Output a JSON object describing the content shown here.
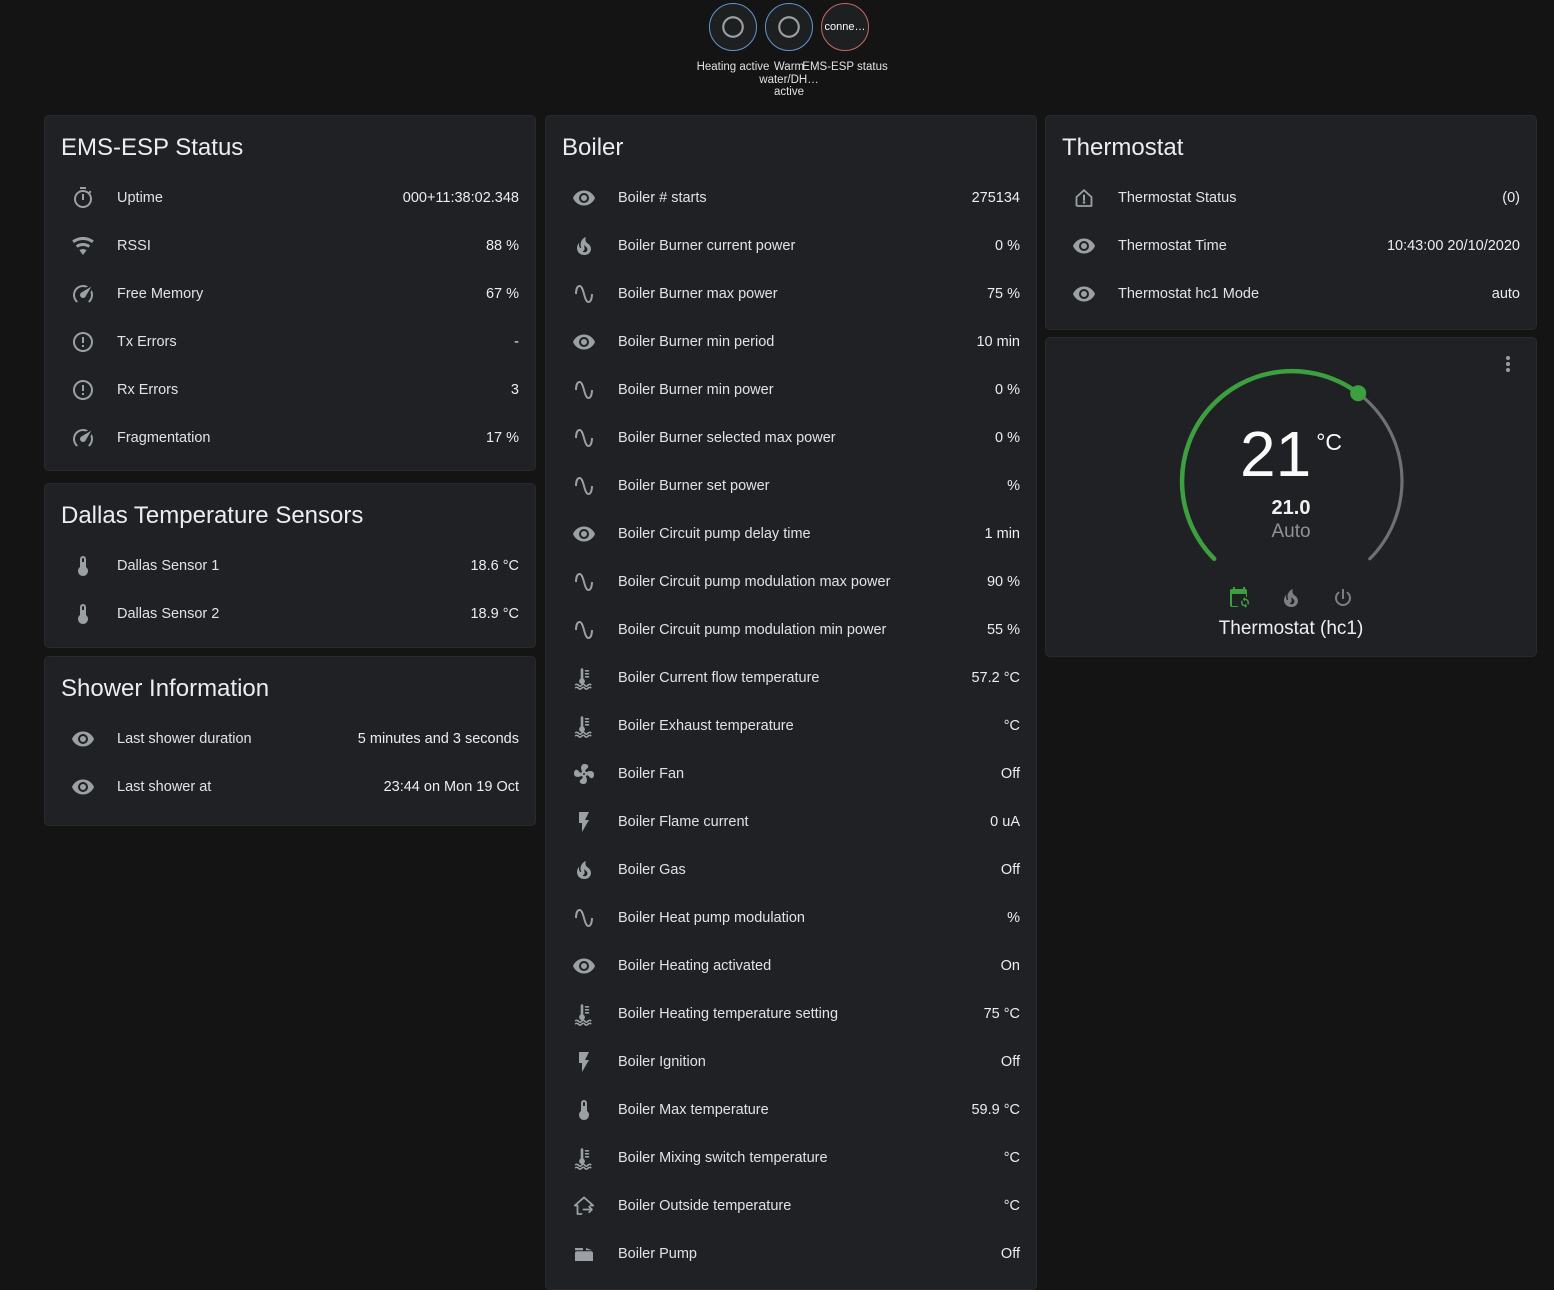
{
  "colors": {
    "accent_green": "#3da03f",
    "badge_blue": "#6295d2",
    "badge_red": "#c86868",
    "arc_gray": "#6e7072"
  },
  "badges": {
    "items": [
      {
        "icon": "radiobox-blank-icon",
        "label": "Heating active",
        "state_text": ""
      },
      {
        "icon": "radiobox-blank-icon",
        "label": "Warm water/DH… active",
        "state_text": ""
      },
      {
        "icon": "",
        "label": "EMS-ESP status",
        "state_text": "conne…"
      }
    ]
  },
  "cards": {
    "ems_status": {
      "title": "EMS-ESP Status",
      "rows": [
        {
          "icon": "timer-icon",
          "label": "Uptime",
          "value": "000+11:38:02.348"
        },
        {
          "icon": "wifi-icon",
          "label": "RSSI",
          "value": "88 %"
        },
        {
          "icon": "gauge-icon",
          "label": "Free Memory",
          "value": "67 %"
        },
        {
          "icon": "alert-circle-icon",
          "label": "Tx Errors",
          "value": "-"
        },
        {
          "icon": "alert-circle-icon",
          "label": "Rx Errors",
          "value": "3"
        },
        {
          "icon": "gauge-icon",
          "label": "Fragmentation",
          "value": "17 %"
        }
      ]
    },
    "dallas": {
      "title": "Dallas Temperature Sensors",
      "rows": [
        {
          "icon": "thermometer-icon",
          "label": "Dallas Sensor 1",
          "value": "18.6 °C"
        },
        {
          "icon": "thermometer-icon",
          "label": "Dallas Sensor 2",
          "value": "18.9 °C"
        }
      ]
    },
    "shower": {
      "title": "Shower Information",
      "rows": [
        {
          "icon": "eye-icon",
          "label": "Last shower duration",
          "value": "5 minutes and 3 seconds"
        },
        {
          "icon": "eye-icon",
          "label": "Last shower at",
          "value": "23:44 on Mon 19 Oct"
        }
      ]
    },
    "boiler": {
      "title": "Boiler",
      "rows": [
        {
          "icon": "eye-icon",
          "label": "Boiler # starts",
          "value": "275134"
        },
        {
          "icon": "fire-icon",
          "label": "Boiler Burner current power",
          "value": "0 %"
        },
        {
          "icon": "sine-wave-icon",
          "label": "Boiler Burner max power",
          "value": "75 %"
        },
        {
          "icon": "eye-icon",
          "label": "Boiler Burner min period",
          "value": "10 min"
        },
        {
          "icon": "sine-wave-icon",
          "label": "Boiler Burner min power",
          "value": "0 %"
        },
        {
          "icon": "sine-wave-icon",
          "label": "Boiler Burner selected max power",
          "value": "0 %"
        },
        {
          "icon": "sine-wave-icon",
          "label": "Boiler Burner set power",
          "value": "%"
        },
        {
          "icon": "eye-icon",
          "label": "Boiler Circuit pump delay time",
          "value": "1 min"
        },
        {
          "icon": "sine-wave-icon",
          "label": "Boiler Circuit pump modulation max power",
          "value": "90 %"
        },
        {
          "icon": "sine-wave-icon",
          "label": "Boiler Circuit pump modulation min power",
          "value": "55 %"
        },
        {
          "icon": "coolant-thermometer-icon",
          "label": "Boiler Current flow temperature",
          "value": "57.2 °C"
        },
        {
          "icon": "coolant-thermometer-icon",
          "label": "Boiler Exhaust temperature",
          "value": "°C"
        },
        {
          "icon": "fan-icon",
          "label": "Boiler Fan",
          "value": "Off"
        },
        {
          "icon": "flash-icon",
          "label": "Boiler Flame current",
          "value": "0 uA"
        },
        {
          "icon": "fire-icon",
          "label": "Boiler Gas",
          "value": "Off"
        },
        {
          "icon": "sine-wave-icon",
          "label": "Boiler Heat pump modulation",
          "value": "%"
        },
        {
          "icon": "eye-icon",
          "label": "Boiler Heating activated",
          "value": "On"
        },
        {
          "icon": "coolant-thermometer-icon",
          "label": "Boiler Heating temperature setting",
          "value": "75 °C"
        },
        {
          "icon": "flash-icon",
          "label": "Boiler Ignition",
          "value": "Off"
        },
        {
          "icon": "thermometer-icon",
          "label": "Boiler Max temperature",
          "value": "59.9 °C"
        },
        {
          "icon": "coolant-thermometer-icon",
          "label": "Boiler Mixing switch temperature",
          "value": "°C"
        },
        {
          "icon": "home-export-icon",
          "label": "Boiler Outside temperature",
          "value": "°C"
        },
        {
          "icon": "pump-icon",
          "label": "Boiler Pump",
          "value": "Off"
        }
      ]
    },
    "thermostat": {
      "title": "Thermostat",
      "rows": [
        {
          "icon": "home-alert-icon",
          "label": "Thermostat Status",
          "value": "(0)"
        },
        {
          "icon": "eye-icon",
          "label": "Thermostat Time",
          "value": "10:43:00 20/10/2020"
        },
        {
          "icon": "eye-icon",
          "label": "Thermostat hc1 Mode",
          "value": "auto"
        }
      ]
    },
    "thermostat_dial": {
      "menu_icon": "dots-vertical-icon",
      "current_temp": "21",
      "unit": "°C",
      "target_temp": "21.0",
      "mode_label": "Auto",
      "modes": [
        {
          "icon": "calendar-sync-icon",
          "active": true
        },
        {
          "icon": "fire-icon",
          "active": false
        },
        {
          "icon": "power-icon",
          "active": false
        }
      ],
      "name": "Thermostat (hc1)"
    }
  }
}
